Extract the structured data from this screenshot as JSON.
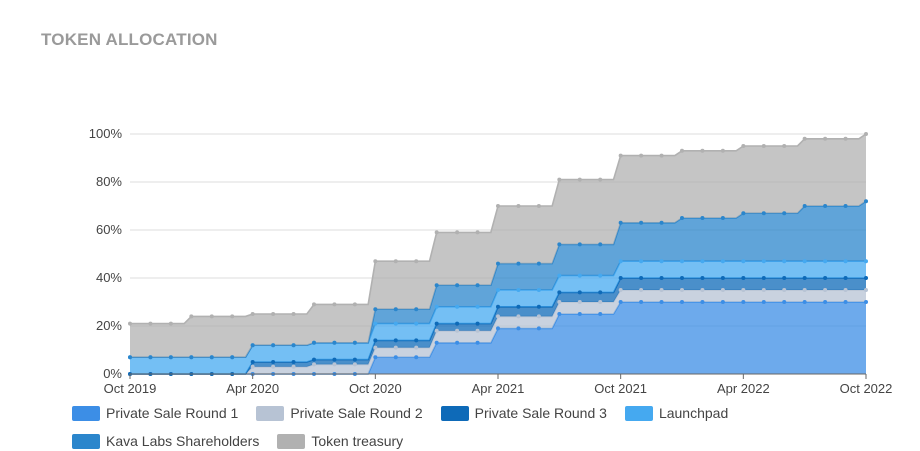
{
  "header": {
    "title": "TOKEN ALLOCATION"
  },
  "chart_data": {
    "type": "area",
    "stacked": true,
    "title": "TOKEN ALLOCATION",
    "y_unit": "%",
    "ylim": [
      0,
      100
    ],
    "yticks": [
      0,
      20,
      40,
      60,
      80,
      100
    ],
    "ytick_labels": [
      "0%",
      "20%",
      "40%",
      "60%",
      "80%",
      "100%"
    ],
    "x": [
      "2019-10",
      "2019-11",
      "2019-12",
      "2020-01",
      "2020-02",
      "2020-03",
      "2020-04",
      "2020-05",
      "2020-06",
      "2020-07",
      "2020-08",
      "2020-09",
      "2020-10",
      "2020-11",
      "2020-12",
      "2021-01",
      "2021-02",
      "2021-03",
      "2021-04",
      "2021-05",
      "2021-06",
      "2021-07",
      "2021-08",
      "2021-09",
      "2021-10",
      "2021-11",
      "2021-12",
      "2022-01",
      "2022-02",
      "2022-03",
      "2022-04",
      "2022-05",
      "2022-06",
      "2022-07",
      "2022-08",
      "2022-09",
      "2022-10"
    ],
    "xtick_labels": [
      "Oct 2019",
      "Apr 2020",
      "Oct 2020",
      "Apr 2021",
      "Oct 2021",
      "Apr 2022",
      "Oct 2022"
    ],
    "xtick_index": [
      0,
      6,
      12,
      18,
      24,
      30,
      36
    ],
    "grid": true,
    "legend_position": "bottom",
    "series": [
      {
        "name": "Private Sale Round 1",
        "color": "#3c8ee6",
        "values": [
          0,
          0,
          0,
          0,
          0,
          0,
          0,
          0,
          0,
          0,
          0,
          0,
          7,
          7,
          7,
          13,
          13,
          13,
          19,
          19,
          19,
          25,
          25,
          25,
          30,
          30,
          30,
          30,
          30,
          30,
          30,
          30,
          30,
          30,
          30,
          30,
          30
        ]
      },
      {
        "name": "Private Sale Round 2",
        "color": "#b7c3d4",
        "values": [
          0,
          0,
          0,
          0,
          0,
          0,
          3,
          3,
          3,
          4,
          4,
          4,
          4,
          4,
          4,
          5,
          5,
          5,
          5,
          5,
          5,
          5,
          5,
          5,
          5,
          5,
          5,
          5,
          5,
          5,
          5,
          5,
          5,
          5,
          5,
          5,
          5
        ]
      },
      {
        "name": "Private Sale Round 3",
        "color": "#0e6ab8",
        "values": [
          0,
          0,
          0,
          0,
          0,
          0,
          2,
          2,
          2,
          2,
          2,
          2,
          3,
          3,
          3,
          3,
          3,
          3,
          4,
          4,
          4,
          4,
          4,
          4,
          5,
          5,
          5,
          5,
          5,
          5,
          5,
          5,
          5,
          5,
          5,
          5,
          5
        ]
      },
      {
        "name": "Launchpad",
        "color": "#45a9f0",
        "values": [
          7,
          7,
          7,
          7,
          7,
          7,
          7,
          7,
          7,
          7,
          7,
          7,
          7,
          7,
          7,
          7,
          7,
          7,
          7,
          7,
          7,
          7,
          7,
          7,
          7,
          7,
          7,
          7,
          7,
          7,
          7,
          7,
          7,
          7,
          7,
          7,
          7
        ]
      },
      {
        "name": "Kava Labs Shareholders",
        "color": "#2b86cc",
        "values": [
          0,
          0,
          0,
          0,
          0,
          0,
          0,
          0,
          0,
          0,
          0,
          0,
          6,
          6,
          6,
          9,
          9,
          9,
          11,
          11,
          11,
          13,
          13,
          13,
          16,
          16,
          16,
          18,
          18,
          18,
          20,
          20,
          20,
          23,
          23,
          23,
          25
        ]
      },
      {
        "name": "Token treasury",
        "color": "#b1b1b1",
        "values": [
          14,
          14,
          14,
          17,
          17,
          17,
          13,
          13,
          13,
          16,
          16,
          16,
          20,
          20,
          20,
          22,
          22,
          22,
          24,
          24,
          24,
          27,
          27,
          27,
          28,
          28,
          28,
          28,
          28,
          28,
          28,
          28,
          28,
          28,
          28,
          28,
          28
        ]
      }
    ]
  }
}
